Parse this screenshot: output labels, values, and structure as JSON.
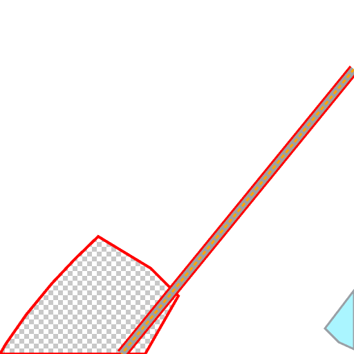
{
  "map": {
    "background_color": "#ffffff",
    "layers": {
      "building_footprint": {
        "fill_pattern": "checkerboard",
        "fill_colors": [
          "#c8c8c8",
          "#ffffff"
        ],
        "outline_color": "#ff0000"
      },
      "road_line": {
        "casing_color": "#ff0000",
        "body_color": "#a0a0a0",
        "center_color": "#ffa500"
      },
      "water_patch": {
        "fill_color": "#aaf5ff",
        "outline_color": "#9aa0a6"
      }
    }
  }
}
